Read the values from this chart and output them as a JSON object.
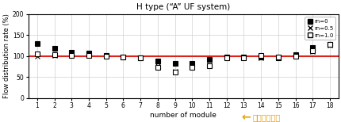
{
  "title": "H type (“A” UF system)",
  "xlabel": "number of module",
  "ylabel": "Flow distribution rate (%)",
  "xlim": [
    0.5,
    18.5
  ],
  "ylim": [
    0,
    200
  ],
  "yticks": [
    0,
    50,
    100,
    150,
    200
  ],
  "xticks": [
    1,
    2,
    3,
    4,
    5,
    6,
    7,
    8,
    9,
    10,
    11,
    12,
    13,
    14,
    15,
    16,
    17,
    18
  ],
  "hline_y": 100,
  "hline_color": "#e0231a",
  "annotation_color": "#e8a000",
  "annotation_text": "원수유입방향",
  "series": {
    "rn0": {
      "label": "rn=0",
      "marker": "s",
      "markerfacecolor": "black",
      "markeredgecolor": "black",
      "markersize": 4,
      "x": [
        1,
        2,
        3,
        4,
        5,
        6,
        7,
        8,
        9,
        10,
        11,
        12,
        13,
        14,
        15,
        16,
        17,
        18
      ],
      "y": [
        130,
        118,
        108,
        106,
        101,
        97,
        95,
        88,
        83,
        82,
        91,
        98,
        97,
        97,
        96,
        103,
        120,
        128
      ]
    },
    "rn05": {
      "label": "rn=0.5",
      "marker": "x",
      "markerfacecolor": "black",
      "markeredgecolor": "black",
      "markersize": 4,
      "x": [
        1,
        2,
        3,
        4,
        5,
        6,
        7,
        8,
        9,
        10,
        11,
        12,
        13,
        14,
        15,
        16,
        17,
        18
      ],
      "y": [
        100,
        101,
        103,
        102,
        99,
        97,
        95,
        76,
        63,
        73,
        78,
        98,
        96,
        95,
        96,
        99,
        110,
        126
      ]
    },
    "rn10": {
      "label": "rn=1.0",
      "marker": "s",
      "markerfacecolor": "white",
      "markeredgecolor": "black",
      "markersize": 4,
      "x": [
        1,
        2,
        3,
        4,
        5,
        6,
        7,
        8,
        9,
        10,
        11,
        12,
        13,
        14,
        15,
        16,
        17,
        18
      ],
      "y": [
        104,
        103,
        102,
        102,
        100,
        98,
        96,
        73,
        61,
        72,
        76,
        96,
        96,
        101,
        98,
        99,
        112,
        128
      ]
    }
  }
}
